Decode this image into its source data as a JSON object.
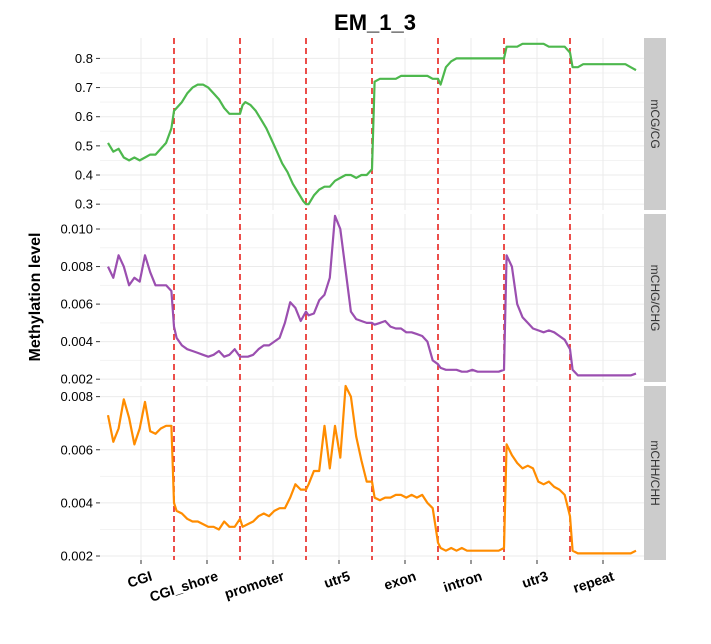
{
  "chart_data": {
    "type": "line",
    "title": "EM_1_3",
    "ylabel": "Methylation level",
    "xlabel": "",
    "grid": true,
    "colors": {
      "mCG/CG": "#4db84d",
      "mCHG/CHG": "#9b4fb0",
      "mCHH/CHH": "#ff8c00",
      "divider": "#e8231e",
      "panel_bg": "#ffffff",
      "grid": "#ebebeb",
      "strip_bg": "#cccccc"
    },
    "regions": [
      "CGI",
      "CGI_shore",
      "promoter",
      "utr5",
      "exon",
      "intron",
      "utr3",
      "repeat"
    ],
    "x_range": [
      0,
      8
    ],
    "facets": [
      {
        "name": "mCG/CG",
        "ylim": [
          0.28,
          0.87
        ],
        "yticks": [
          0.3,
          0.4,
          0.5,
          0.6,
          0.7,
          0.8
        ],
        "ytick_labels": [
          "0.3",
          "0.4",
          "0.5",
          "0.6",
          "0.7",
          "0.8"
        ],
        "x": [
          0,
          0.08,
          0.16,
          0.24,
          0.32,
          0.4,
          0.48,
          0.56,
          0.64,
          0.72,
          0.8,
          0.88,
          0.96,
          1.0,
          1.04,
          1.12,
          1.2,
          1.28,
          1.36,
          1.44,
          1.52,
          1.6,
          1.68,
          1.76,
          1.84,
          1.92,
          2.0,
          2.04,
          2.08,
          2.16,
          2.24,
          2.32,
          2.4,
          2.48,
          2.56,
          2.64,
          2.72,
          2.8,
          2.88,
          2.96,
          3.0,
          3.04,
          3.12,
          3.2,
          3.28,
          3.36,
          3.44,
          3.52,
          3.6,
          3.68,
          3.76,
          3.84,
          3.92,
          4.0,
          4.04,
          4.12,
          4.2,
          4.28,
          4.36,
          4.44,
          4.52,
          4.6,
          4.68,
          4.76,
          4.84,
          4.92,
          5.0,
          5.04,
          5.12,
          5.2,
          5.28,
          5.36,
          5.44,
          5.52,
          5.6,
          5.68,
          5.76,
          5.84,
          5.92,
          6.0,
          6.04,
          6.12,
          6.2,
          6.28,
          6.36,
          6.44,
          6.52,
          6.6,
          6.68,
          6.76,
          6.84,
          6.92,
          7.0,
          7.04,
          7.12,
          7.2,
          7.28,
          7.36,
          7.44,
          7.52,
          7.6,
          7.68,
          7.76,
          7.84,
          7.92,
          8.0
        ],
        "values": [
          0.51,
          0.48,
          0.49,
          0.46,
          0.45,
          0.46,
          0.45,
          0.46,
          0.47,
          0.47,
          0.49,
          0.51,
          0.56,
          0.62,
          0.63,
          0.65,
          0.68,
          0.7,
          0.71,
          0.71,
          0.7,
          0.68,
          0.66,
          0.63,
          0.61,
          0.61,
          0.61,
          0.64,
          0.65,
          0.64,
          0.62,
          0.59,
          0.56,
          0.52,
          0.48,
          0.44,
          0.41,
          0.37,
          0.34,
          0.31,
          0.3,
          0.3,
          0.33,
          0.35,
          0.36,
          0.36,
          0.38,
          0.39,
          0.4,
          0.4,
          0.39,
          0.4,
          0.4,
          0.42,
          0.72,
          0.73,
          0.73,
          0.73,
          0.73,
          0.74,
          0.74,
          0.74,
          0.74,
          0.74,
          0.74,
          0.73,
          0.73,
          0.71,
          0.77,
          0.79,
          0.8,
          0.8,
          0.8,
          0.8,
          0.8,
          0.8,
          0.8,
          0.8,
          0.8,
          0.8,
          0.84,
          0.84,
          0.84,
          0.85,
          0.85,
          0.85,
          0.85,
          0.85,
          0.84,
          0.84,
          0.84,
          0.84,
          0.82,
          0.77,
          0.77,
          0.78,
          0.78,
          0.78,
          0.78,
          0.78,
          0.78,
          0.78,
          0.78,
          0.78,
          0.77,
          0.76
        ]
      },
      {
        "name": "mCHG/CHG",
        "ylim": [
          0.00185,
          0.0108
        ],
        "yticks": [
          0.002,
          0.004,
          0.006,
          0.008,
          0.01
        ],
        "ytick_labels": [
          "0.002",
          "0.004",
          "0.006",
          "0.008",
          "0.010"
        ],
        "x": [
          0,
          0.08,
          0.16,
          0.24,
          0.32,
          0.4,
          0.48,
          0.56,
          0.64,
          0.72,
          0.8,
          0.88,
          0.96,
          1.0,
          1.04,
          1.12,
          1.2,
          1.28,
          1.36,
          1.44,
          1.52,
          1.6,
          1.68,
          1.76,
          1.84,
          1.92,
          2.0,
          2.04,
          2.12,
          2.2,
          2.28,
          2.36,
          2.44,
          2.52,
          2.6,
          2.68,
          2.76,
          2.84,
          2.92,
          3.0,
          3.04,
          3.12,
          3.2,
          3.28,
          3.36,
          3.44,
          3.52,
          3.6,
          3.68,
          3.76,
          3.84,
          3.92,
          4.0,
          4.04,
          4.12,
          4.2,
          4.28,
          4.36,
          4.44,
          4.52,
          4.6,
          4.68,
          4.76,
          4.84,
          4.92,
          5.0,
          5.04,
          5.12,
          5.2,
          5.28,
          5.36,
          5.44,
          5.52,
          5.6,
          5.68,
          5.76,
          5.84,
          5.92,
          6.0,
          6.04,
          6.12,
          6.2,
          6.28,
          6.36,
          6.44,
          6.52,
          6.6,
          6.68,
          6.76,
          6.84,
          6.92,
          7.0,
          7.04,
          7.12,
          7.2,
          7.28,
          7.36,
          7.44,
          7.52,
          7.6,
          7.68,
          7.76,
          7.84,
          7.92,
          8.0
        ],
        "values": [
          0.008,
          0.0074,
          0.0086,
          0.008,
          0.007,
          0.0074,
          0.0072,
          0.0086,
          0.0077,
          0.007,
          0.007,
          0.007,
          0.0067,
          0.0048,
          0.0042,
          0.0038,
          0.0036,
          0.0035,
          0.0034,
          0.0033,
          0.0032,
          0.0033,
          0.0035,
          0.0032,
          0.0033,
          0.0036,
          0.0032,
          0.0032,
          0.0032,
          0.0033,
          0.0036,
          0.0038,
          0.0038,
          0.004,
          0.0042,
          0.005,
          0.0061,
          0.0058,
          0.0051,
          0.0056,
          0.0054,
          0.0055,
          0.0062,
          0.0065,
          0.0074,
          0.0107,
          0.01,
          0.0078,
          0.0056,
          0.0052,
          0.0051,
          0.005,
          0.005,
          0.0049,
          0.005,
          0.0051,
          0.0048,
          0.0047,
          0.0047,
          0.0045,
          0.0045,
          0.0044,
          0.0043,
          0.004,
          0.003,
          0.0028,
          0.0026,
          0.0025,
          0.0025,
          0.0025,
          0.0024,
          0.0024,
          0.0025,
          0.0024,
          0.0024,
          0.0024,
          0.0024,
          0.0024,
          0.0025,
          0.0086,
          0.008,
          0.006,
          0.0053,
          0.005,
          0.0047,
          0.0046,
          0.0045,
          0.0046,
          0.0045,
          0.0043,
          0.0041,
          0.0036,
          0.0025,
          0.0022,
          0.0022,
          0.0022,
          0.0022,
          0.0022,
          0.0022,
          0.0022,
          0.0022,
          0.0022,
          0.0022,
          0.0022,
          0.0023
        ]
      },
      {
        "name": "mCHH/CHH",
        "ylim": [
          0.00185,
          0.0084
        ],
        "yticks": [
          0.002,
          0.004,
          0.006,
          0.008
        ],
        "ytick_labels": [
          "0.002",
          "0.004",
          "0.006",
          "0.008"
        ],
        "x": [
          0,
          0.08,
          0.16,
          0.24,
          0.32,
          0.4,
          0.48,
          0.56,
          0.64,
          0.72,
          0.8,
          0.88,
          0.96,
          1.0,
          1.04,
          1.12,
          1.2,
          1.28,
          1.36,
          1.44,
          1.52,
          1.6,
          1.68,
          1.76,
          1.84,
          1.92,
          2.0,
          2.04,
          2.12,
          2.2,
          2.28,
          2.36,
          2.44,
          2.52,
          2.6,
          2.68,
          2.76,
          2.84,
          2.92,
          3.0,
          3.04,
          3.12,
          3.2,
          3.28,
          3.36,
          3.44,
          3.52,
          3.6,
          3.68,
          3.76,
          3.84,
          3.92,
          4.0,
          4.04,
          4.12,
          4.2,
          4.28,
          4.36,
          4.44,
          4.52,
          4.6,
          4.68,
          4.76,
          4.84,
          4.92,
          5.0,
          5.04,
          5.12,
          5.2,
          5.28,
          5.36,
          5.44,
          5.52,
          5.6,
          5.68,
          5.76,
          5.84,
          5.92,
          6.0,
          6.04,
          6.12,
          6.2,
          6.28,
          6.36,
          6.44,
          6.52,
          6.6,
          6.68,
          6.76,
          6.84,
          6.92,
          7.0,
          7.04,
          7.12,
          7.2,
          7.28,
          7.36,
          7.44,
          7.52,
          7.6,
          7.68,
          7.76,
          7.84,
          7.92,
          8.0
        ],
        "values": [
          0.0073,
          0.0063,
          0.0068,
          0.0079,
          0.0072,
          0.0062,
          0.0068,
          0.0078,
          0.0067,
          0.0066,
          0.0068,
          0.0069,
          0.0069,
          0.004,
          0.0037,
          0.0036,
          0.0034,
          0.0033,
          0.0033,
          0.0032,
          0.0031,
          0.0031,
          0.003,
          0.0033,
          0.0031,
          0.0031,
          0.0034,
          0.0031,
          0.0032,
          0.0033,
          0.0035,
          0.0036,
          0.0035,
          0.0037,
          0.0038,
          0.0038,
          0.0042,
          0.0047,
          0.0045,
          0.0045,
          0.0047,
          0.0052,
          0.0052,
          0.0069,
          0.0053,
          0.0069,
          0.0057,
          0.0084,
          0.008,
          0.0065,
          0.0056,
          0.0048,
          0.0048,
          0.0042,
          0.0041,
          0.0042,
          0.0042,
          0.0043,
          0.0043,
          0.0042,
          0.0043,
          0.0042,
          0.0043,
          0.004,
          0.0038,
          0.0025,
          0.0023,
          0.0022,
          0.0023,
          0.0022,
          0.0023,
          0.0022,
          0.0022,
          0.0022,
          0.0022,
          0.0022,
          0.0022,
          0.0022,
          0.0023,
          0.0062,
          0.0058,
          0.0055,
          0.0053,
          0.0054,
          0.0053,
          0.0048,
          0.0047,
          0.0048,
          0.0046,
          0.0045,
          0.0043,
          0.0035,
          0.0022,
          0.0021,
          0.0021,
          0.0021,
          0.0021,
          0.0021,
          0.0021,
          0.0021,
          0.0021,
          0.0021,
          0.0021,
          0.0021,
          0.0022
        ]
      }
    ]
  }
}
